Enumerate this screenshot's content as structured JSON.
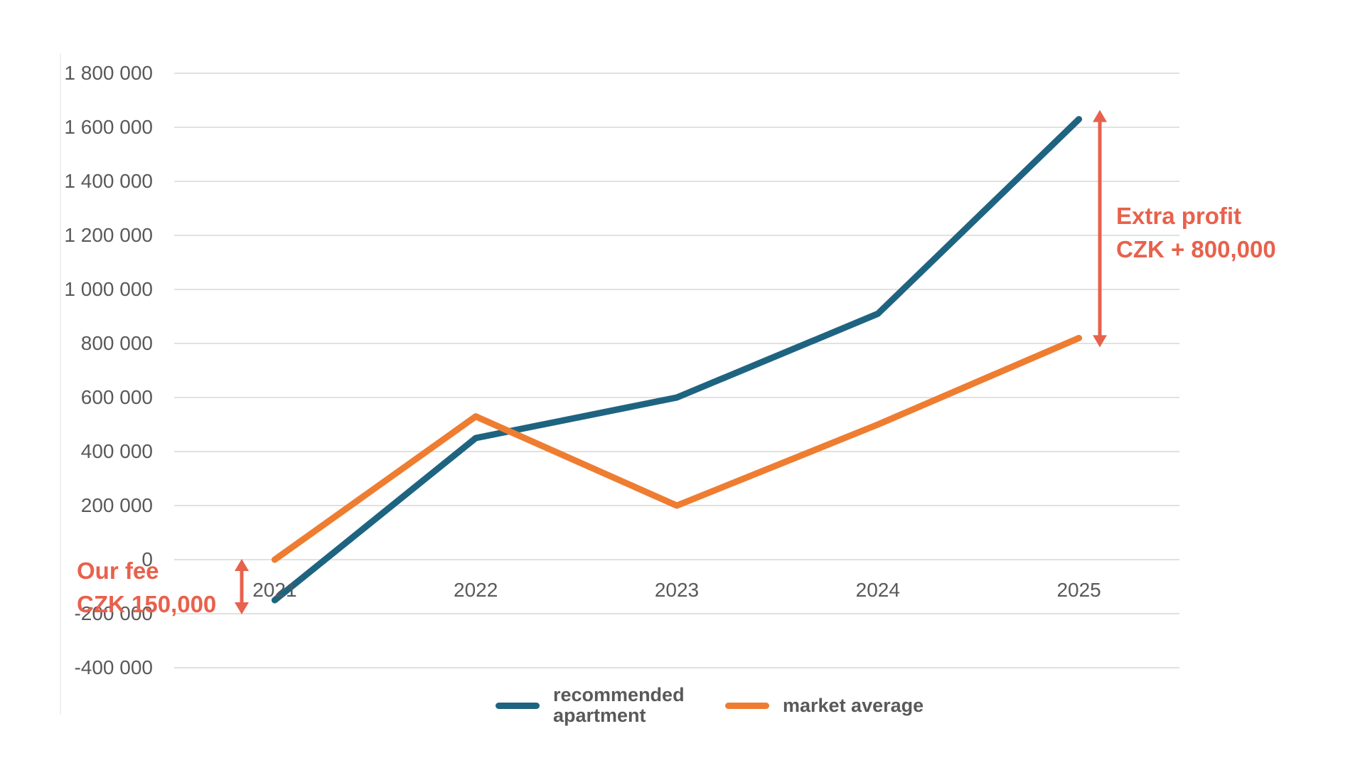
{
  "chart_data": {
    "type": "line",
    "title": "",
    "xlabel": "",
    "ylabel": "",
    "x_categories": [
      "2021",
      "2022",
      "2023",
      "2024",
      "2025"
    ],
    "series": [
      {
        "name": "recommended apartment",
        "color": "#1e6481",
        "values": [
          -150000,
          450000,
          600000,
          910000,
          1630000
        ]
      },
      {
        "name": "market average",
        "color": "#ee7d31",
        "values": [
          0,
          530000,
          200000,
          500000,
          820000
        ]
      }
    ],
    "ylim": [
      -400000,
      1800000
    ],
    "ytick_step": 200000,
    "ytick_labels": [
      "1 800 000",
      "1 600 000",
      "1 400 000",
      "1 200 000",
      "1 000 000",
      "800 000",
      "600 000",
      "400 000",
      "200 000",
      "0",
      "-200 000",
      "-400 000"
    ],
    "ytick_values": [
      1800000,
      1600000,
      1400000,
      1200000,
      1000000,
      800000,
      600000,
      400000,
      200000,
      0,
      -200000,
      -400000
    ],
    "grid": true,
    "legend_position": "bottom",
    "annotations": [
      {
        "id": "fee",
        "lines": [
          "Our fee",
          "CZK 150,000"
        ],
        "color": "#e8614c",
        "arrow": {
          "from_value": 0,
          "to_value": -200000,
          "at_category": "2021"
        }
      },
      {
        "id": "extra_profit",
        "lines": [
          "Extra profit",
          "CZK + 800,000"
        ],
        "color": "#e8614c",
        "arrow": {
          "from_value": 1630000,
          "to_value": 820000,
          "at_category": "2025"
        }
      }
    ]
  },
  "colors": {
    "axis_text": "#595959",
    "gridline": "#e1e1e1",
    "annotation": "#e8614c",
    "background": "#ffffff"
  }
}
